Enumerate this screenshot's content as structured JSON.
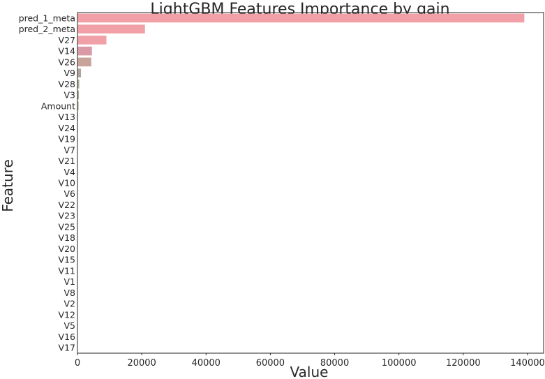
{
  "chart_data": {
    "type": "bar",
    "orientation": "horizontal",
    "title": "LightGBM Features Importance by gain",
    "xlabel": "Value",
    "ylabel": "Feature",
    "xlim": [
      0,
      145000
    ],
    "xticks": [
      0,
      20000,
      40000,
      60000,
      80000,
      100000,
      120000,
      140000
    ],
    "xtick_labels": [
      "0",
      "20000",
      "40000",
      "60000",
      "80000",
      "100000",
      "120000",
      "140000"
    ],
    "grid": false,
    "categories": [
      "pred_1_meta",
      "pred_2_meta",
      "V27",
      "V14",
      "V26",
      "V9",
      "V28",
      "V3",
      "Amount",
      "V13",
      "V24",
      "V19",
      "V7",
      "V21",
      "V4",
      "V10",
      "V6",
      "V22",
      "V23",
      "V25",
      "V18",
      "V20",
      "V15",
      "V11",
      "V1",
      "V8",
      "V2",
      "V12",
      "V5",
      "V16",
      "V17"
    ],
    "values": [
      139000,
      21000,
      9000,
      4500,
      4300,
      1100,
      550,
      450,
      350,
      200,
      150,
      120,
      100,
      90,
      80,
      70,
      60,
      50,
      45,
      40,
      35,
      30,
      25,
      20,
      18,
      15,
      12,
      10,
      8,
      5,
      3
    ],
    "colors": [
      "#f0a0a6",
      "#f0a0a6",
      "#f0a0a6",
      "#d99aa6",
      "#c8a39a",
      "#b0a49a",
      "#a8aa98",
      "#a2ac94",
      "#9eae92",
      "#98b090",
      "#94b28e",
      "#90b48e",
      "#8cb68e",
      "#8ab690",
      "#88b892",
      "#86b896",
      "#88b89c",
      "#8ab8a2",
      "#8cb8a8",
      "#90b8ae",
      "#94b8b4",
      "#98b6ba",
      "#9cb4be",
      "#a2b2c2",
      "#a8b0c6",
      "#aeaec8",
      "#b4accc",
      "#baaace",
      "#c0a8d0",
      "#c8a6d0",
      "#cea4ce"
    ]
  }
}
